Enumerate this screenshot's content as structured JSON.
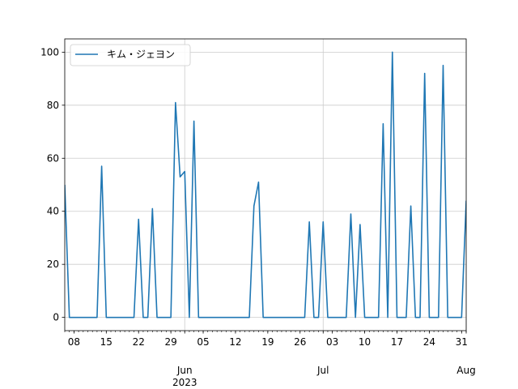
{
  "chart_data": {
    "type": "line",
    "series": [
      {
        "name": "キム・ジェヨン",
        "color": "#1f77b4",
        "points": [
          [
            "2023-05-06",
            50
          ],
          [
            "2023-05-07",
            0
          ],
          [
            "2023-05-08",
            0
          ],
          [
            "2023-05-09",
            0
          ],
          [
            "2023-05-10",
            0
          ],
          [
            "2023-05-11",
            0
          ],
          [
            "2023-05-12",
            0
          ],
          [
            "2023-05-13",
            0
          ],
          [
            "2023-05-14",
            57
          ],
          [
            "2023-05-15",
            0
          ],
          [
            "2023-05-16",
            0
          ],
          [
            "2023-05-17",
            0
          ],
          [
            "2023-05-18",
            0
          ],
          [
            "2023-05-19",
            0
          ],
          [
            "2023-05-20",
            0
          ],
          [
            "2023-05-21",
            0
          ],
          [
            "2023-05-22",
            37
          ],
          [
            "2023-05-23",
            0
          ],
          [
            "2023-05-24",
            0
          ],
          [
            "2023-05-25",
            41
          ],
          [
            "2023-05-26",
            0
          ],
          [
            "2023-05-27",
            0
          ],
          [
            "2023-05-28",
            0
          ],
          [
            "2023-05-29",
            0
          ],
          [
            "2023-05-30",
            81
          ],
          [
            "2023-05-31",
            53
          ],
          [
            "2023-06-01",
            55
          ],
          [
            "2023-06-02",
            0
          ],
          [
            "2023-06-03",
            74
          ],
          [
            "2023-06-04",
            0
          ],
          [
            "2023-06-05",
            0
          ],
          [
            "2023-06-06",
            0
          ],
          [
            "2023-06-07",
            0
          ],
          [
            "2023-06-08",
            0
          ],
          [
            "2023-06-09",
            0
          ],
          [
            "2023-06-10",
            0
          ],
          [
            "2023-06-11",
            0
          ],
          [
            "2023-06-12",
            0
          ],
          [
            "2023-06-13",
            0
          ],
          [
            "2023-06-14",
            0
          ],
          [
            "2023-06-15",
            0
          ],
          [
            "2023-06-16",
            42
          ],
          [
            "2023-06-17",
            51
          ],
          [
            "2023-06-18",
            0
          ],
          [
            "2023-06-19",
            0
          ],
          [
            "2023-06-20",
            0
          ],
          [
            "2023-06-21",
            0
          ],
          [
            "2023-06-22",
            0
          ],
          [
            "2023-06-23",
            0
          ],
          [
            "2023-06-24",
            0
          ],
          [
            "2023-06-25",
            0
          ],
          [
            "2023-06-26",
            0
          ],
          [
            "2023-06-27",
            0
          ],
          [
            "2023-06-28",
            36
          ],
          [
            "2023-06-29",
            0
          ],
          [
            "2023-06-30",
            0
          ],
          [
            "2023-07-01",
            36
          ],
          [
            "2023-07-02",
            0
          ],
          [
            "2023-07-03",
            0
          ],
          [
            "2023-07-04",
            0
          ],
          [
            "2023-07-05",
            0
          ],
          [
            "2023-07-06",
            0
          ],
          [
            "2023-07-07",
            39
          ],
          [
            "2023-07-08",
            0
          ],
          [
            "2023-07-09",
            35
          ],
          [
            "2023-07-10",
            0
          ],
          [
            "2023-07-11",
            0
          ],
          [
            "2023-07-12",
            0
          ],
          [
            "2023-07-13",
            0
          ],
          [
            "2023-07-14",
            73
          ],
          [
            "2023-07-15",
            0
          ],
          [
            "2023-07-16",
            100
          ],
          [
            "2023-07-17",
            0
          ],
          [
            "2023-07-18",
            0
          ],
          [
            "2023-07-19",
            0
          ],
          [
            "2023-07-20",
            42
          ],
          [
            "2023-07-21",
            0
          ],
          [
            "2023-07-22",
            0
          ],
          [
            "2023-07-23",
            92
          ],
          [
            "2023-07-24",
            0
          ],
          [
            "2023-07-25",
            0
          ],
          [
            "2023-07-26",
            0
          ],
          [
            "2023-07-27",
            95
          ],
          [
            "2023-07-28",
            0
          ],
          [
            "2023-07-29",
            0
          ],
          [
            "2023-07-30",
            0
          ],
          [
            "2023-07-31",
            0
          ],
          [
            "2023-08-01",
            44
          ]
        ]
      }
    ],
    "xlim": [
      "2023-05-06",
      "2023-08-01"
    ],
    "ylim": [
      -5,
      105
    ],
    "x_ticks": [
      {
        "date": "2023-05-08",
        "label": "08"
      },
      {
        "date": "2023-05-15",
        "label": "15"
      },
      {
        "date": "2023-05-22",
        "label": "22"
      },
      {
        "date": "2023-05-29",
        "label": "29"
      },
      {
        "date": "2023-06-01",
        "label": "Jun\n2023"
      },
      {
        "date": "2023-06-05",
        "label": "05"
      },
      {
        "date": "2023-06-12",
        "label": "12"
      },
      {
        "date": "2023-06-19",
        "label": "19"
      },
      {
        "date": "2023-06-26",
        "label": "26"
      },
      {
        "date": "2023-07-01",
        "label": "Jul"
      },
      {
        "date": "2023-07-03",
        "label": "03"
      },
      {
        "date": "2023-07-10",
        "label": "10"
      },
      {
        "date": "2023-07-17",
        "label": "17"
      },
      {
        "date": "2023-07-24",
        "label": "24"
      },
      {
        "date": "2023-07-31",
        "label": "31"
      },
      {
        "date": "2023-08-01",
        "label": "Aug"
      }
    ],
    "y_ticks": [
      0,
      20,
      40,
      60,
      80,
      100
    ],
    "grid": "on, at month boundaries and y ticks",
    "legend": "upper-left",
    "title": "",
    "xlabel": "",
    "ylabel": ""
  }
}
